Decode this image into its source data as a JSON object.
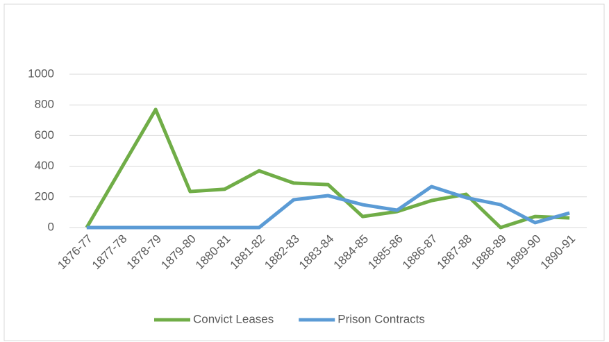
{
  "chart_data": {
    "type": "line",
    "categories": [
      "1876-77",
      "1877-78",
      "1878-79",
      "1879-80",
      "1880-81",
      "1881-82",
      "1882-83",
      "1883-84",
      "1884-85",
      "1885-86",
      "1886-87",
      "1887-88",
      "1888-89",
      "1889-90",
      "1890-91"
    ],
    "series": [
      {
        "name": "Convict Leases",
        "color": "#70ad47",
        "values": [
          0,
          385,
          770,
          235,
          250,
          370,
          290,
          280,
          72,
          104,
          176,
          217,
          0,
          72,
          63
        ]
      },
      {
        "name": "Prison Contracts",
        "color": "#5b9bd5",
        "values": [
          0,
          0,
          0,
          0,
          0,
          0,
          181,
          208,
          149,
          113,
          267,
          195,
          149,
          32,
          95
        ]
      }
    ],
    "ylim": [
      0,
      1000
    ],
    "yticks": [
      0,
      200,
      400,
      600,
      800,
      1000
    ],
    "grid": true,
    "legend": "bottom"
  }
}
